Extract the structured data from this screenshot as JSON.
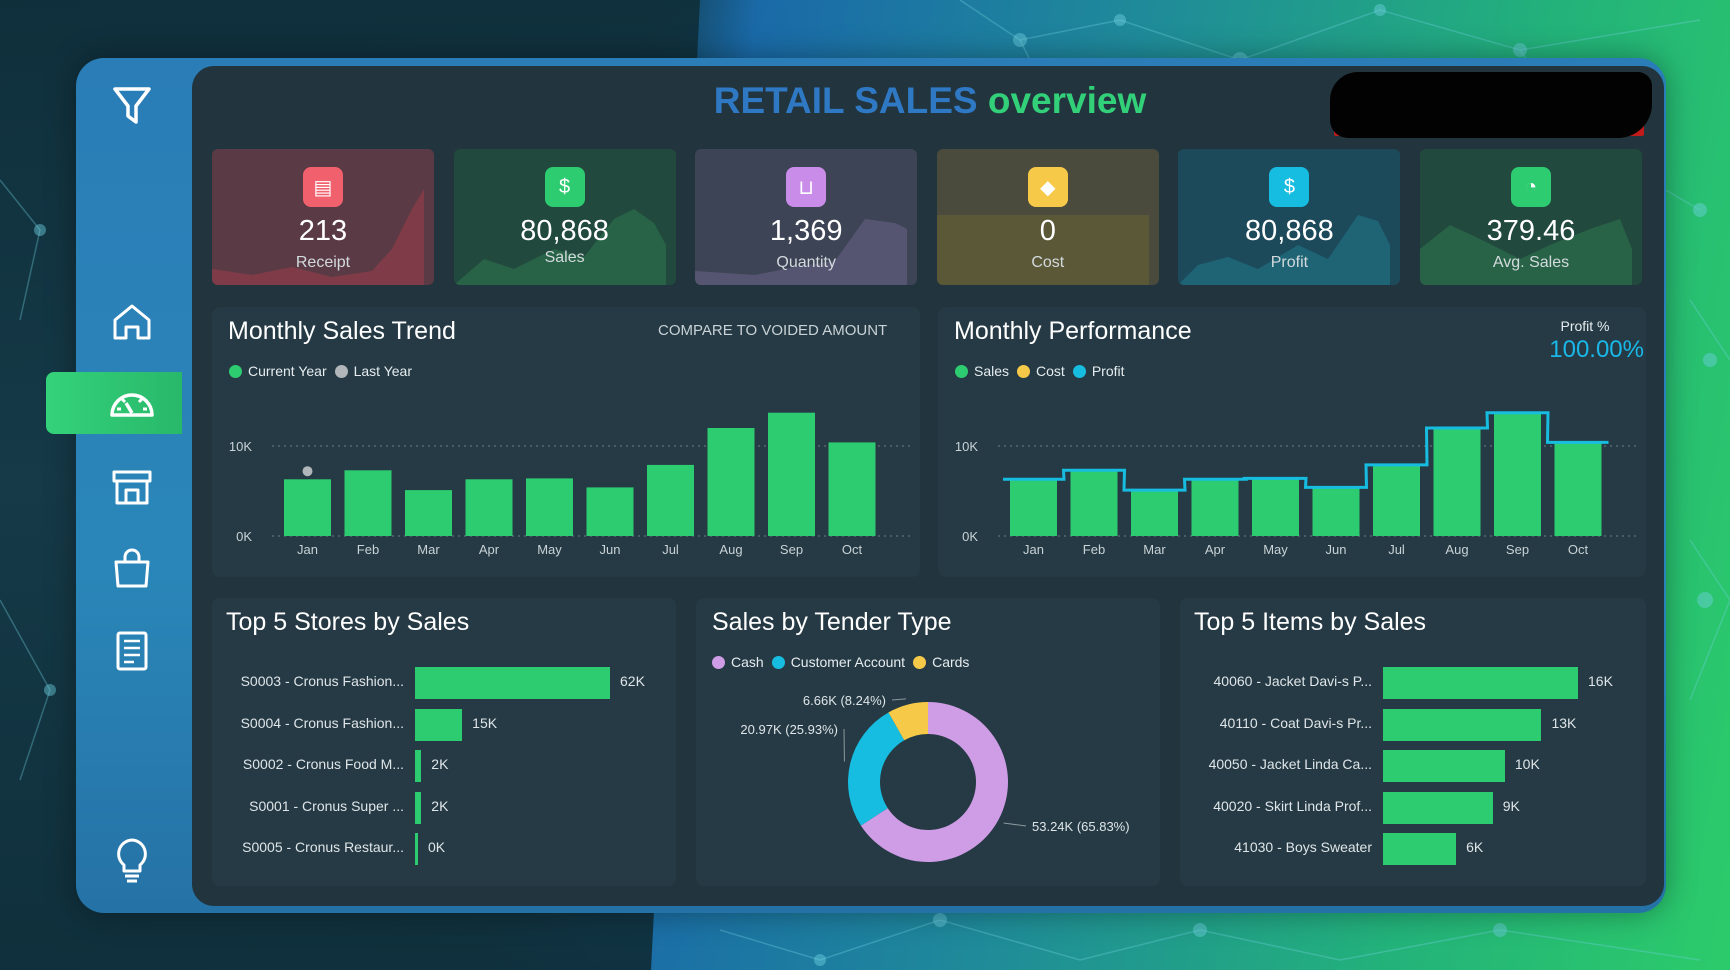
{
  "title": {
    "part1": "RETAIL SALES",
    "part2": "overview"
  },
  "sidebar": {
    "items": [
      {
        "icon": "filter-icon"
      },
      {
        "icon": "home-icon"
      },
      {
        "icon": "dashboard-gauge-icon",
        "active": true
      },
      {
        "icon": "store-icon"
      },
      {
        "icon": "shopping-bag-icon"
      },
      {
        "icon": "report-icon"
      },
      {
        "icon": "lightbulb-icon"
      }
    ]
  },
  "kpis": [
    {
      "value": "213",
      "label": "Receipt",
      "icon": "receipt-icon",
      "color": "#f0616d"
    },
    {
      "value": "80,868",
      "label": "Sales",
      "icon": "money-bag-icon",
      "color": "#2ecc71"
    },
    {
      "value": "1,369",
      "label": "Quantity",
      "icon": "basket-icon",
      "color": "#c98ce8"
    },
    {
      "value": "0",
      "label": "Cost",
      "icon": "price-tag-icon",
      "color": "#f7c948"
    },
    {
      "value": "80,868",
      "label": "Profit",
      "icon": "dollar-badge-icon",
      "color": "#17bde0"
    },
    {
      "value": "379.46",
      "label": "Avg. Sales",
      "icon": "pie-icon",
      "color": "#2ecc71"
    }
  ],
  "monthly_sales_trend": {
    "title": "Monthly Sales Trend",
    "compare_label": "COMPARE TO VOIDED AMOUNT",
    "legend": [
      {
        "label": "Current Year",
        "color": "#2ecc71"
      },
      {
        "label": "Last Year",
        "color": "#b0b6b9"
      }
    ],
    "y_ticks": [
      "10K",
      "0K"
    ]
  },
  "monthly_performance": {
    "title": "Monthly Performance",
    "legend": [
      {
        "label": "Sales",
        "color": "#2ecc71"
      },
      {
        "label": "Cost",
        "color": "#f7c948"
      },
      {
        "label": "Profit",
        "color": "#17bde0"
      }
    ],
    "profit_pct_label": "Profit %",
    "profit_pct_value": "100.00%",
    "y_ticks": [
      "10K",
      "0K"
    ]
  },
  "top_stores": {
    "title": "Top 5 Stores by Sales"
  },
  "tender": {
    "title": "Sales by Tender Type",
    "legend": [
      {
        "label": "Cash",
        "color": "#cf9ce6"
      },
      {
        "label": "Customer Account",
        "color": "#17bde0"
      },
      {
        "label": "Cards",
        "color": "#f7c948"
      }
    ],
    "slice_labels": [
      "53.24K (65.83%)",
      "20.97K (25.93%)",
      "6.66K (8.24%)"
    ]
  },
  "top_items": {
    "title": "Top 5 Items by Sales"
  },
  "chart_data": [
    {
      "type": "bar",
      "title": "Monthly Sales Trend",
      "categories": [
        "Jan",
        "Feb",
        "Mar",
        "Apr",
        "May",
        "Jun",
        "Jul",
        "Aug",
        "Sep",
        "Oct"
      ],
      "series": [
        {
          "name": "Current Year",
          "values": [
            6300,
            7300,
            5100,
            6300,
            6400,
            5400,
            7900,
            12000,
            13700,
            10400
          ]
        },
        {
          "name": "Last Year",
          "values": [
            7200,
            null,
            null,
            null,
            null,
            null,
            null,
            null,
            null,
            null
          ]
        }
      ],
      "ylim": [
        0,
        14000
      ]
    },
    {
      "type": "bar",
      "title": "Monthly Performance",
      "categories": [
        "Jan",
        "Feb",
        "Mar",
        "Apr",
        "May",
        "Jun",
        "Jul",
        "Aug",
        "Sep",
        "Oct"
      ],
      "series": [
        {
          "name": "Sales",
          "values": [
            6300,
            7300,
            5100,
            6300,
            6400,
            5400,
            7900,
            12000,
            13700,
            10400
          ]
        },
        {
          "name": "Cost",
          "values": [
            0,
            0,
            0,
            0,
            0,
            0,
            0,
            0,
            0,
            0
          ]
        },
        {
          "name": "Profit",
          "values": [
            6300,
            7300,
            5100,
            6300,
            6400,
            5400,
            7900,
            12000,
            13700,
            10400
          ]
        }
      ],
      "ylim": [
        0,
        14000
      ]
    },
    {
      "type": "bar",
      "title": "Top 5 Stores by Sales",
      "categories": [
        "S0003 - Cronus Fashion...",
        "S0004 - Cronus Fashion...",
        "S0002 - Cronus Food M...",
        "S0001 - Cronus Super ...",
        "S0005 - Cronus Restaur..."
      ],
      "values": [
        62000,
        15000,
        2000,
        2000,
        0
      ],
      "value_labels": [
        "62K",
        "15K",
        "2K",
        "2K",
        "0K"
      ]
    },
    {
      "type": "pie",
      "title": "Sales by Tender Type",
      "categories": [
        "Cash",
        "Customer Account",
        "Cards"
      ],
      "values": [
        53240,
        20970,
        6660
      ],
      "percent": [
        65.83,
        25.93,
        8.24
      ]
    },
    {
      "type": "bar",
      "title": "Top 5 Items by Sales",
      "categories": [
        "40060 - Jacket Davi-s P...",
        "40110 - Coat Davi-s Pr...",
        "40050 - Jacket Linda Ca...",
        "40020 - Skirt Linda Prof...",
        "41030 - Boys Sweater"
      ],
      "values": [
        16000,
        13000,
        10000,
        9000,
        6000
      ],
      "value_labels": [
        "16K",
        "13K",
        "10K",
        "9K",
        "6K"
      ]
    }
  ]
}
